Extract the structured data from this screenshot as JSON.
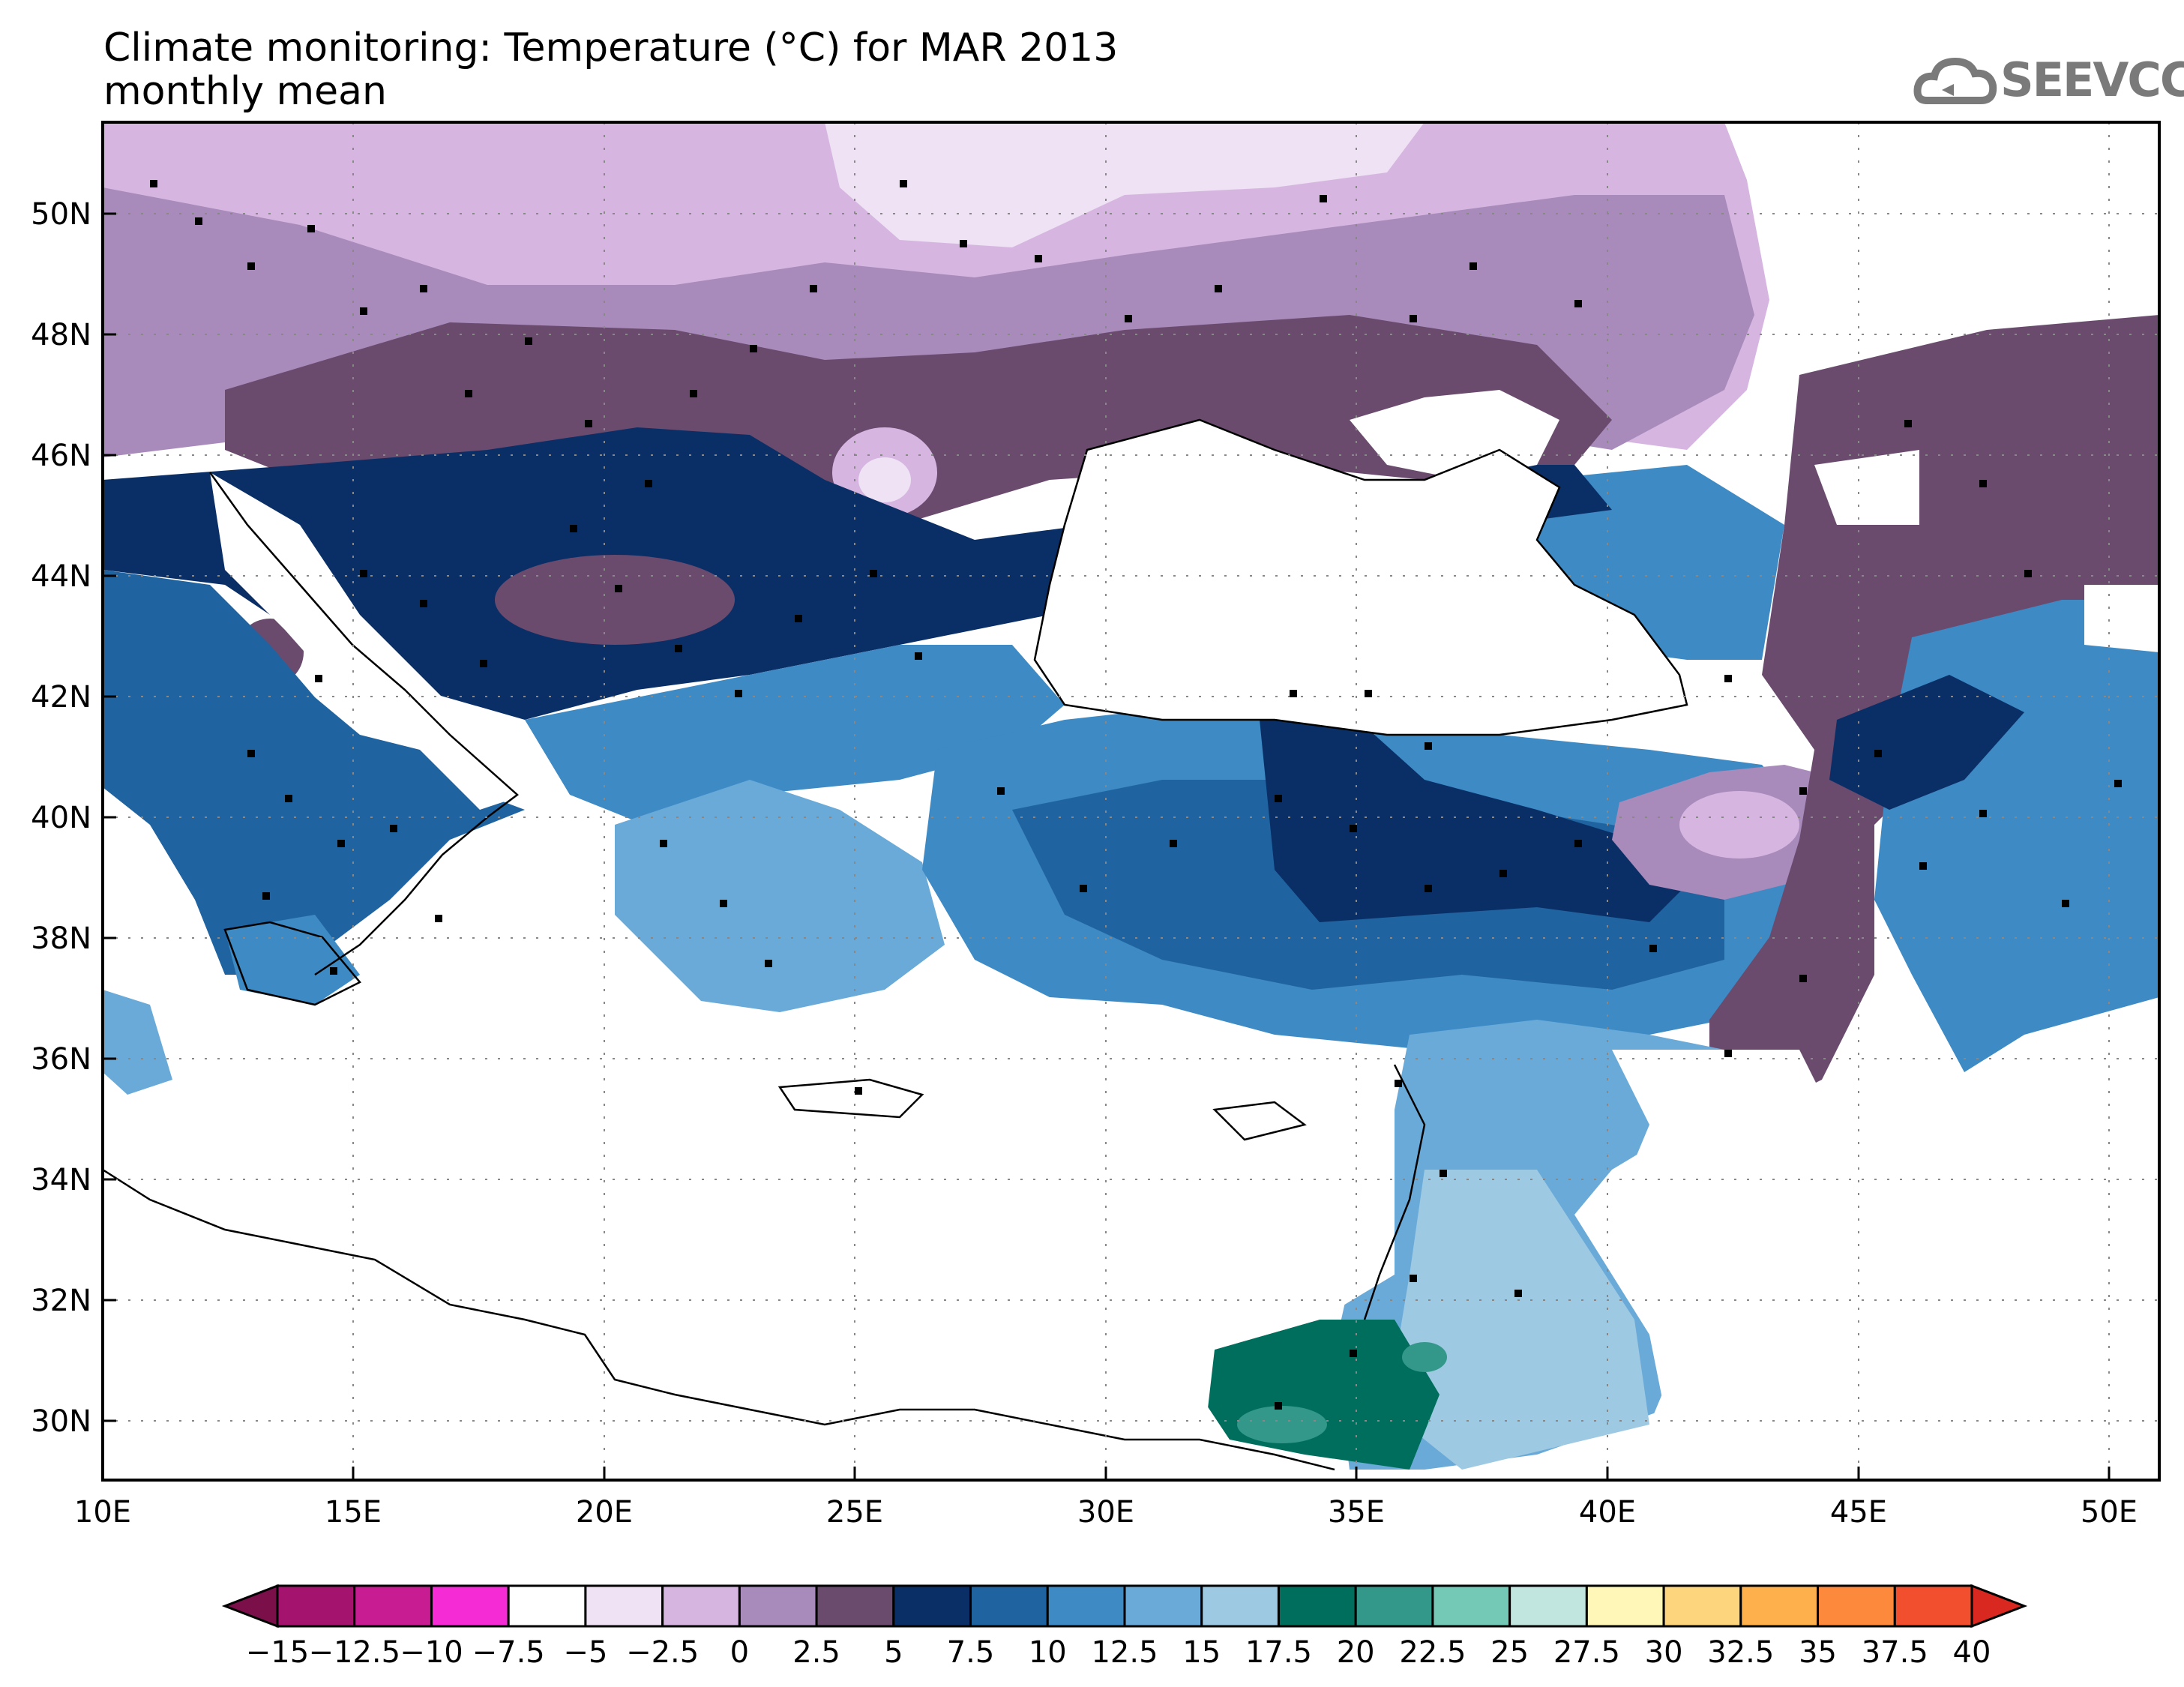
{
  "title": "Climate monitoring: Temperature (°C) for MAR 2013",
  "subtitle": "monthly mean",
  "logo_text": "SEEVCCC",
  "logo_icon": "cloud-icon",
  "map": {
    "lon_range": [
      10,
      51
    ],
    "lat_range": [
      29,
      51.5
    ],
    "lon_ticks": [
      "10E",
      "15E",
      "20E",
      "25E",
      "30E",
      "35E",
      "40E",
      "45E",
      "50E"
    ],
    "lat_ticks": [
      "30N",
      "32N",
      "34N",
      "36N",
      "38N",
      "40N",
      "42N",
      "44N",
      "46N",
      "48N",
      "50N"
    ],
    "grid": "dotted"
  },
  "colorbar": {
    "labels": [
      "−15",
      "−12.5",
      "−10",
      "−7.5",
      "−5",
      "−2.5",
      "0",
      "2.5",
      "5",
      "7.5",
      "10",
      "12.5",
      "15",
      "17.5",
      "20",
      "22.5",
      "25",
      "27.5",
      "30",
      "32.5",
      "35",
      "37.5",
      "40"
    ],
    "colors": [
      "#7a0f4a",
      "#a4146e",
      "#c81d92",
      "#f52bd6",
      "#ffffff",
      "#efe2f4",
      "#d6b6e1",
      "#a98bbb",
      "#6a4b6e",
      "#0a2f66",
      "#1f64a0",
      "#3d8ac4",
      "#6aaad8",
      "#9ec9e2",
      "#006e5c",
      "#33978a",
      "#74c8b6",
      "#c0e6df",
      "#fef7b8",
      "#fdd57c",
      "#fdb04c",
      "#fd8a3c",
      "#f14f2d",
      "#d8281f"
    ]
  }
}
